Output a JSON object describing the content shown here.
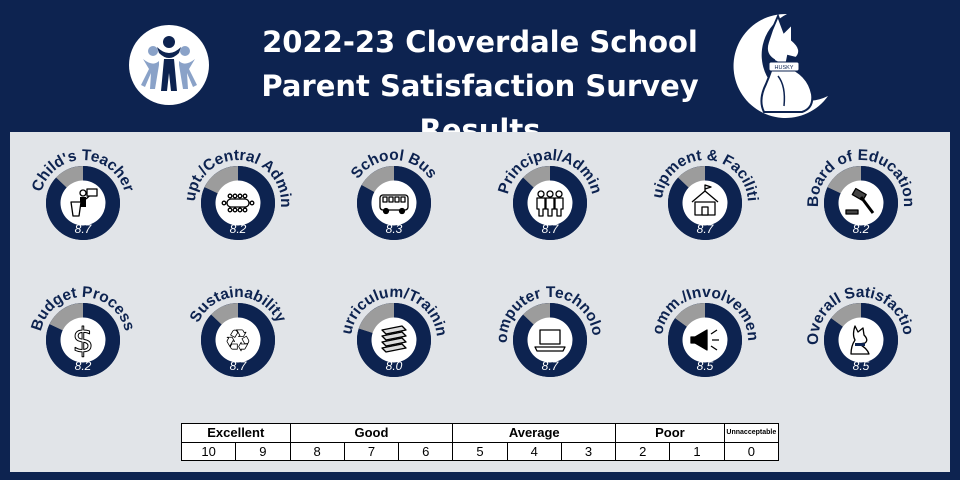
{
  "title": {
    "line1": "2022-23 Cloverdale School",
    "line2": "Parent Satisfaction Survey Results"
  },
  "colors": {
    "navy": "#0d2350",
    "gray": "#9c9c9c",
    "panel": "#e1e4e8",
    "white": "#ffffff"
  },
  "chart_data": {
    "type": "pie",
    "max": 10,
    "items": [
      {
        "label": "Child's Teacher",
        "value": "8.7",
        "icon": "teacher-at-podium-icon"
      },
      {
        "label": "Supt./Central Admin.",
        "value": "8.2",
        "icon": "conference-table-icon"
      },
      {
        "label": "School Bus",
        "value": "8.3",
        "icon": "school-bus-icon"
      },
      {
        "label": "Principal/Admin",
        "value": "8.7",
        "icon": "group-of-people-icon"
      },
      {
        "label": "Equipment & Facilities",
        "value": "8.7",
        "icon": "school-building-icon"
      },
      {
        "label": "Board of Education",
        "value": "8.2",
        "icon": "gavel-icon"
      },
      {
        "label": "Budget Process",
        "value": "8.2",
        "icon": "dollar-sign-icon"
      },
      {
        "label": "Sustainability",
        "value": "8.7",
        "icon": "recycle-icon"
      },
      {
        "label": "Curriculum/Training",
        "value": "8.0",
        "icon": "books-icon"
      },
      {
        "label": "Computer Technology",
        "value": "8.7",
        "icon": "laptop-icon"
      },
      {
        "label": "Comm./Involvement",
        "value": "8.5",
        "icon": "megaphone-icon"
      },
      {
        "label": "Overall Satisfaction",
        "value": "8.5",
        "icon": "husky-mascot-icon"
      }
    ]
  },
  "scale": {
    "categories": [
      "Excellent",
      "Good",
      "Average",
      "Poor",
      "Unnacceptable"
    ],
    "numbers": [
      "10",
      "9",
      "8",
      "7",
      "6",
      "5",
      "4",
      "3",
      "2",
      "1",
      "0"
    ]
  },
  "logos": {
    "left": "people-logo-icon",
    "right_badge": "HUSKY"
  }
}
